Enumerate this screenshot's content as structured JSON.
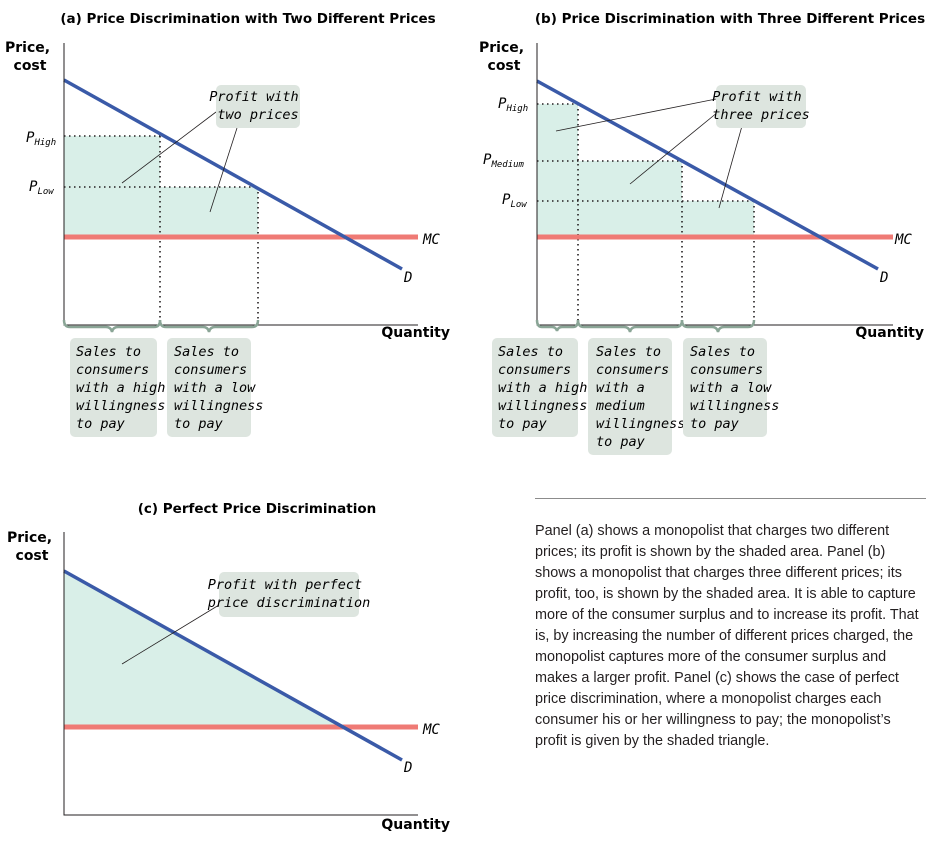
{
  "panels": {
    "a": {
      "title": "(a) Price Discrimination with Two Different Prices",
      "y_axis_label": [
        "Price,",
        "cost"
      ],
      "x_axis_label": "Quantity",
      "price_labels": [
        {
          "main": "P",
          "sub": "High"
        },
        {
          "main": "P",
          "sub": "Low"
        }
      ],
      "curve_labels": {
        "mc": "MC",
        "d": "D"
      },
      "profit_callout": [
        "Profit with",
        "two prices"
      ],
      "sales_boxes": [
        [
          "Sales to",
          "consumers",
          "with a high",
          "willingness",
          "to pay"
        ],
        [
          "Sales to",
          "consumers",
          "with a low",
          "willingness",
          "to pay"
        ]
      ]
    },
    "b": {
      "title": "(b) Price Discrimination with Three Different Prices",
      "y_axis_label": [
        "Price,",
        "cost"
      ],
      "x_axis_label": "Quantity",
      "price_labels": [
        {
          "main": "P",
          "sub": "High"
        },
        {
          "main": "P",
          "sub": "Medium"
        },
        {
          "main": "P",
          "sub": "Low"
        }
      ],
      "curve_labels": {
        "mc": "MC",
        "d": "D"
      },
      "profit_callout": [
        "Profit with",
        "three prices"
      ],
      "sales_boxes": [
        [
          "Sales to",
          "consumers",
          "with a high",
          "willingness",
          "to pay"
        ],
        [
          "Sales to",
          "consumers",
          "with a",
          "medium",
          "willingness",
          "to pay"
        ],
        [
          "Sales to",
          "consumers",
          "with a low",
          "willingness",
          "to pay"
        ]
      ]
    },
    "c": {
      "title": "(c) Perfect Price Discrimination",
      "y_axis_label": [
        "Price,",
        "cost"
      ],
      "x_axis_label": "Quantity",
      "curve_labels": {
        "mc": "MC",
        "d": "D"
      },
      "profit_callout": [
        "Profit with perfect",
        "price discrimination"
      ]
    }
  },
  "caption": "Panel (a) shows a monopolist that charges two different prices; its profit is shown by the shaded area. Panel (b) shows a monopolist that charges three different prices; its profit, too, is shown by the shaded area. It is able to capture more of the consumer surplus and to increase its profit. That is, by increasing the number of different prices charged, the monopolist captures more of the consumer surplus and makes a larger profit. Panel (c) shows the case of perfect price discrimination, where a monopolist charges each consumer his or her willingness to pay; the monopolist’s profit is given by the shaded triangle.",
  "colors": {
    "demand": "#3a5aa8",
    "mc": "#ef7a75",
    "profit_fill": "#d9efe8",
    "box_fill": "#dde5df",
    "axis": "#231f20"
  }
}
